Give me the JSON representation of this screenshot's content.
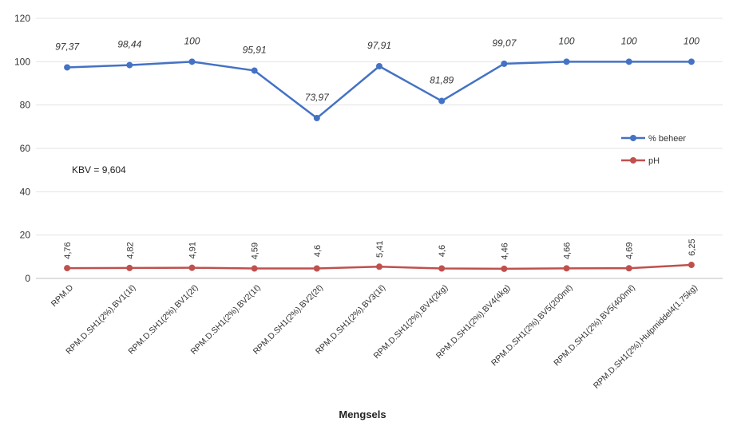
{
  "chart_data": {
    "type": "line",
    "xlabel": "Mengsels",
    "ylabel": "",
    "ylim": [
      0,
      120
    ],
    "yticks": [
      0,
      20,
      40,
      60,
      80,
      100,
      120
    ],
    "grid": "horizontal",
    "legend_position": "right",
    "categories": [
      "RPM.D",
      "RPM.D.SH1(2%).BV1(1ℓ)",
      "RPM.D.SH1(2%).BV1(2ℓ)",
      "RPM.D.SH1(2%).BV2(1ℓ)",
      "RPM.D.SH1(2%).BV2(2ℓ)",
      "RPM.D.SH1(2%).BV3(1ℓ)",
      "RPM.D.SH1(2%).BV4(2kg)",
      "RPM.D.SH1(2%).BV4(4kg)",
      "RPM.D.SH1(2%).BV5(200mℓ)",
      "RPM.D.SH1(2%).BV5(400mℓ)",
      "RPM.D.SH1(2%).Hulpmiddel4(1.75kg)"
    ],
    "series": [
      {
        "name": "% beheer",
        "color": "#4472C4",
        "values": [
          97.37,
          98.44,
          100,
          95.91,
          73.97,
          97.91,
          81.89,
          99.07,
          100,
          100,
          100
        ],
        "labels": [
          "97,37",
          "98,44",
          "100",
          "95,91",
          "73,97",
          "97,91",
          "81,89",
          "99,07",
          "100",
          "100",
          "100"
        ]
      },
      {
        "name": "pH",
        "color": "#C0504D",
        "values": [
          4.76,
          4.82,
          4.91,
          4.59,
          4.6,
          5.41,
          4.6,
          4.46,
          4.66,
          4.69,
          6.25
        ],
        "labels": [
          "4,76",
          "4,82",
          "4,91",
          "4,59",
          "4,6",
          "5,41",
          "4,6",
          "4,46",
          "4,66",
          "4,69",
          "6,25"
        ]
      }
    ],
    "annotations": [
      "KBV = 9,604"
    ]
  }
}
